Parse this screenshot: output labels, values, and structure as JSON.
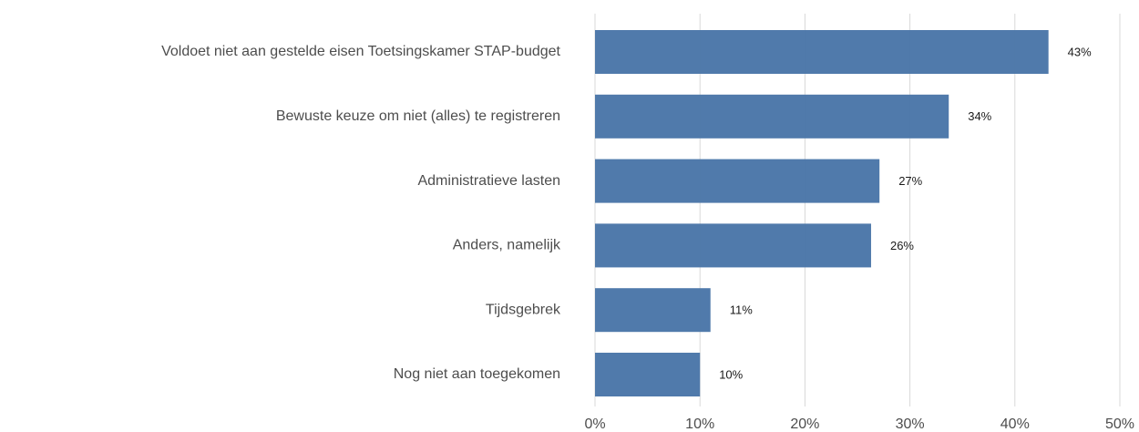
{
  "chart_data": {
    "type": "hbar",
    "categories": [
      "Voldoet niet aan gestelde eisen Toetsingskamer STAP-budget",
      "Bewuste keuze om niet (alles) te registreren",
      "Administratieve lasten",
      "Anders, namelijk",
      "Tijdsgebrek",
      "Nog niet aan toegekomen"
    ],
    "values": [
      43.2,
      33.7,
      27.1,
      26.3,
      11.0,
      10.0
    ],
    "value_labels": [
      "43%",
      "34%",
      "27%",
      "26%",
      "11%",
      "10%"
    ],
    "color": "#4a76a8",
    "xlim": [
      0,
      50
    ],
    "xticks": [
      {
        "value": 0,
        "label": "0%"
      },
      {
        "value": 10,
        "label": "10%"
      },
      {
        "value": 20,
        "label": "20%"
      },
      {
        "value": 30,
        "label": "30%"
      },
      {
        "value": 40,
        "label": "40%"
      },
      {
        "value": 50,
        "label": "50%"
      }
    ],
    "grid": true
  }
}
